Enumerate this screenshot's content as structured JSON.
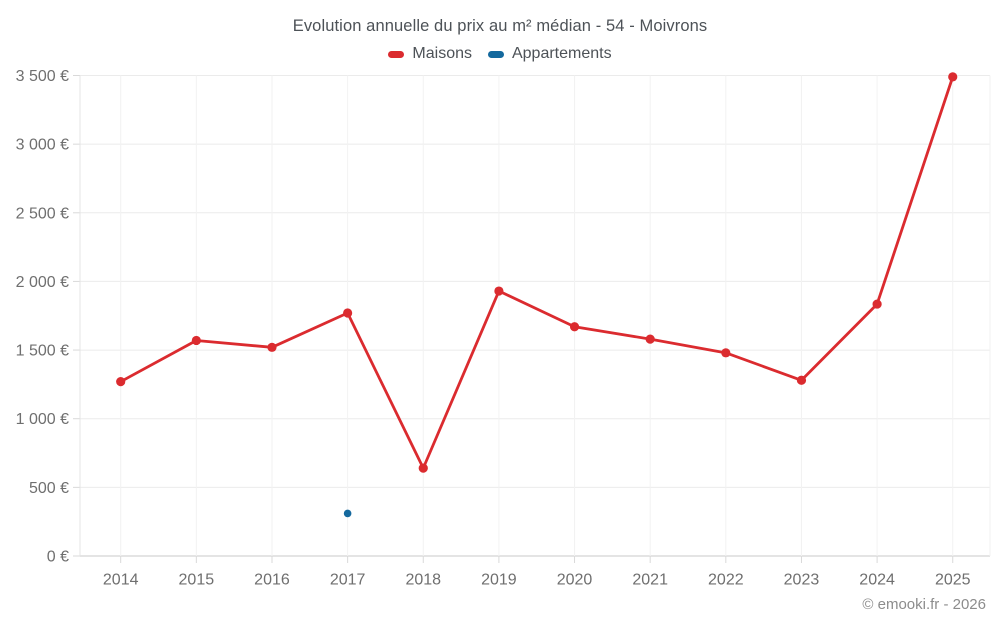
{
  "title": "Evolution annuelle du prix au m² médian - 54 - Moivrons",
  "footer": "© emooki.fr - 2026",
  "legend": {
    "items": [
      {
        "label": "Maisons",
        "color": "#db2b2f"
      },
      {
        "label": "Appartements",
        "color": "#14699e"
      }
    ]
  },
  "colors": {
    "maisons_red": "#db2b2f",
    "appartements_blue": "#14699e",
    "grid_horizontal": "#ebebeb",
    "grid_vertical": "#f2f2f2",
    "axis_bottom": "#c9c9c9",
    "axis_left": "#e4e4e4",
    "tick_mark": "#d9d9d9",
    "title_text": "#4d5257",
    "tick_text": "#6f6f6f",
    "footer_text": "#8c8c8c"
  },
  "chart_data": {
    "type": "line",
    "title": "Evolution annuelle du prix au m² médian - 54 - Moivrons",
    "x": [
      "2014",
      "2015",
      "2016",
      "2017",
      "2018",
      "2019",
      "2020",
      "2021",
      "2022",
      "2023",
      "2024",
      "2025"
    ],
    "series": [
      {
        "name": "Maisons",
        "color": "#db2b2f",
        "values": [
          1270,
          1570,
          1520,
          1770,
          640,
          1930,
          1670,
          1580,
          1480,
          1280,
          1835,
          3490
        ]
      },
      {
        "name": "Appartements",
        "color": "#14699e",
        "values": [
          null,
          null,
          null,
          310,
          null,
          null,
          null,
          null,
          null,
          null,
          null,
          null
        ]
      }
    ],
    "xlabel": "",
    "ylabel": "",
    "ylim": [
      0,
      3500
    ],
    "ytick_step": 500,
    "ytick_suffix": " €",
    "grid": true,
    "legend_position": "top"
  }
}
